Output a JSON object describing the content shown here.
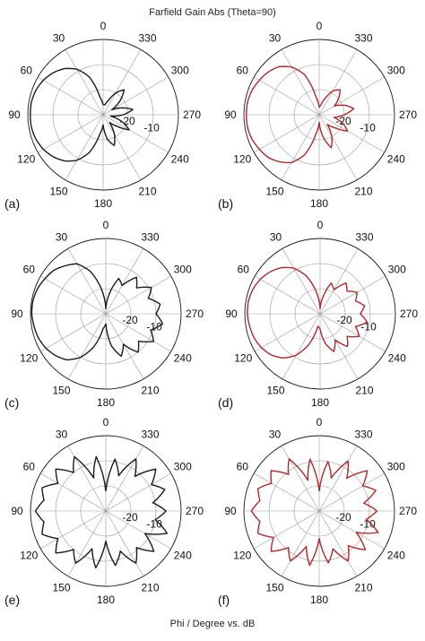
{
  "figure": {
    "title": "Farfield Gain Abs (Theta=90)",
    "xaxis_caption": "Phi / Degree vs. dB"
  },
  "chart_data": [
    {
      "type": "polar_line",
      "panel_label": "(a)",
      "angle_labels": [
        "0",
        "30",
        "60",
        "90",
        "120",
        "150",
        "180",
        "210",
        "240",
        "270",
        "300",
        "330"
      ],
      "radial_tick_labels": [
        "-20",
        "-10"
      ],
      "line_color": "#1a1a1a",
      "angle_deg": [
        0,
        10,
        20,
        30,
        40,
        50,
        60,
        70,
        80,
        90,
        100,
        110,
        120,
        130,
        140,
        150,
        160,
        170,
        180,
        190,
        200,
        210,
        220,
        230,
        240,
        250,
        260,
        270,
        280,
        290,
        300,
        310,
        320,
        330,
        340,
        350
      ],
      "gain_db": [
        -26,
        -23,
        -14,
        -9,
        -6,
        -4,
        -2.5,
        -1.5,
        -1,
        -1,
        -1,
        -1.5,
        -2.5,
        -4,
        -6,
        -9,
        -14,
        -22,
        -26,
        -20,
        -17,
        -21,
        -26,
        -23,
        -18,
        -22,
        -27,
        -22,
        -18,
        -22,
        -26,
        -21,
        -17,
        -20,
        -24,
        -26
      ]
    },
    {
      "type": "polar_line",
      "panel_label": "(b)",
      "angle_labels": [
        "0",
        "30",
        "60",
        "90",
        "120",
        "150",
        "180",
        "210",
        "240",
        "270",
        "300",
        "330"
      ],
      "radial_tick_labels": [
        "-20",
        "-10"
      ],
      "line_color": "#b0272c",
      "angle_deg": [
        0,
        10,
        20,
        30,
        40,
        50,
        60,
        70,
        80,
        90,
        100,
        110,
        120,
        130,
        140,
        150,
        160,
        170,
        180,
        190,
        200,
        210,
        220,
        230,
        240,
        250,
        260,
        270,
        280,
        290,
        300,
        310,
        320,
        330,
        340,
        350
      ],
      "gain_db": [
        -27,
        -23,
        -13,
        -8,
        -5,
        -3.5,
        -2.5,
        -1.5,
        -1,
        -1,
        -1,
        -1.5,
        -2.5,
        -3.5,
        -5.5,
        -8,
        -13,
        -22,
        -27,
        -21,
        -16,
        -20,
        -25,
        -22,
        -17,
        -20,
        -24,
        -20,
        -16,
        -19,
        -23,
        -20,
        -17,
        -19,
        -23,
        -26
      ]
    },
    {
      "type": "polar_line",
      "panel_label": "(c)",
      "angle_labels": [
        "0",
        "30",
        "60",
        "90",
        "120",
        "150",
        "180",
        "210",
        "240",
        "270",
        "300",
        "330"
      ],
      "radial_tick_labels": [
        "-20",
        "-10"
      ],
      "line_color": "#1a1a1a",
      "angle_deg": [
        0,
        10,
        20,
        30,
        40,
        50,
        60,
        70,
        80,
        90,
        100,
        110,
        120,
        130,
        140,
        150,
        160,
        170,
        180,
        190,
        200,
        210,
        220,
        230,
        240,
        250,
        260,
        270,
        280,
        290,
        300,
        310,
        320,
        330,
        340,
        350
      ],
      "gain_db": [
        -28,
        -20,
        -12,
        -7,
        -5,
        -3,
        -2,
        -1,
        -0.5,
        -0.5,
        -1,
        -1.5,
        -2.5,
        -4,
        -6,
        -10,
        -16,
        -24,
        -26,
        -17,
        -12,
        -16,
        -10,
        -13,
        -8,
        -11,
        -7,
        -10,
        -8,
        -12,
        -9,
        -14,
        -11,
        -17,
        -15,
        -22
      ]
    },
    {
      "type": "polar_line",
      "panel_label": "(d)",
      "angle_labels": [
        "0",
        "30",
        "60",
        "90",
        "120",
        "150",
        "180",
        "210",
        "240",
        "270",
        "300",
        "330"
      ],
      "radial_tick_labels": [
        "-20",
        "-10"
      ],
      "line_color": "#b0272c",
      "angle_deg": [
        0,
        10,
        20,
        30,
        40,
        50,
        60,
        70,
        80,
        90,
        100,
        110,
        120,
        130,
        140,
        150,
        160,
        170,
        180,
        190,
        200,
        210,
        220,
        230,
        240,
        250,
        260,
        270,
        280,
        290,
        300,
        310,
        320,
        330,
        340,
        350
      ],
      "gain_db": [
        -28,
        -21,
        -14,
        -9,
        -6,
        -4,
        -2.5,
        -1.5,
        -1,
        -1,
        -1.5,
        -2,
        -3,
        -4.5,
        -7,
        -11,
        -17,
        -25,
        -24,
        -18,
        -14,
        -18,
        -13,
        -16,
        -12,
        -15,
        -11,
        -14,
        -12,
        -15,
        -13,
        -16,
        -14,
        -19,
        -17,
        -23
      ]
    },
    {
      "type": "polar_line",
      "panel_label": "(e)",
      "angle_labels": [
        "0",
        "30",
        "60",
        "90",
        "120",
        "150",
        "180",
        "210",
        "240",
        "270",
        "300",
        "330"
      ],
      "radial_tick_labels": [
        "-20",
        "-10"
      ],
      "line_color": "#1a1a1a",
      "angle_deg": [
        0,
        10,
        20,
        30,
        40,
        50,
        60,
        70,
        80,
        90,
        100,
        110,
        120,
        130,
        140,
        150,
        160,
        170,
        180,
        190,
        200,
        210,
        220,
        230,
        240,
        250,
        260,
        270,
        280,
        290,
        300,
        310,
        320,
        330,
        340,
        350
      ],
      "gain_db": [
        -22,
        -8,
        -16,
        -5,
        -10,
        -4,
        -8,
        -3,
        -5,
        -2,
        -5,
        -3,
        -8,
        -4,
        -10,
        -6,
        -14,
        -7,
        -18,
        -8,
        -13,
        -6,
        -11,
        -5,
        -12,
        -4,
        -10,
        -6,
        -11,
        -5,
        -9,
        -4,
        -12,
        -6,
        -15,
        -9
      ]
    },
    {
      "type": "polar_line",
      "panel_label": "(f)",
      "angle_labels": [
        "0",
        "30",
        "60",
        "90",
        "120",
        "150",
        "180",
        "210",
        "240",
        "270",
        "300",
        "330"
      ],
      "radial_tick_labels": [
        "-20",
        "-10"
      ],
      "line_color": "#b0272c",
      "angle_deg": [
        0,
        10,
        20,
        30,
        40,
        50,
        60,
        70,
        80,
        90,
        100,
        110,
        120,
        130,
        140,
        150,
        160,
        170,
        180,
        190,
        200,
        210,
        220,
        230,
        240,
        250,
        260,
        270,
        280,
        290,
        300,
        310,
        320,
        330,
        340,
        350
      ],
      "gain_db": [
        -22,
        -9,
        -17,
        -6,
        -11,
        -5,
        -8,
        -4,
        -6,
        -3,
        -6,
        -4,
        -9,
        -5,
        -11,
        -7,
        -15,
        -8,
        -19,
        -9,
        -14,
        -7,
        -12,
        -6,
        -13,
        -5,
        -11,
        -7,
        -12,
        -6,
        -10,
        -5,
        -13,
        -7,
        -16,
        -10
      ]
    }
  ]
}
